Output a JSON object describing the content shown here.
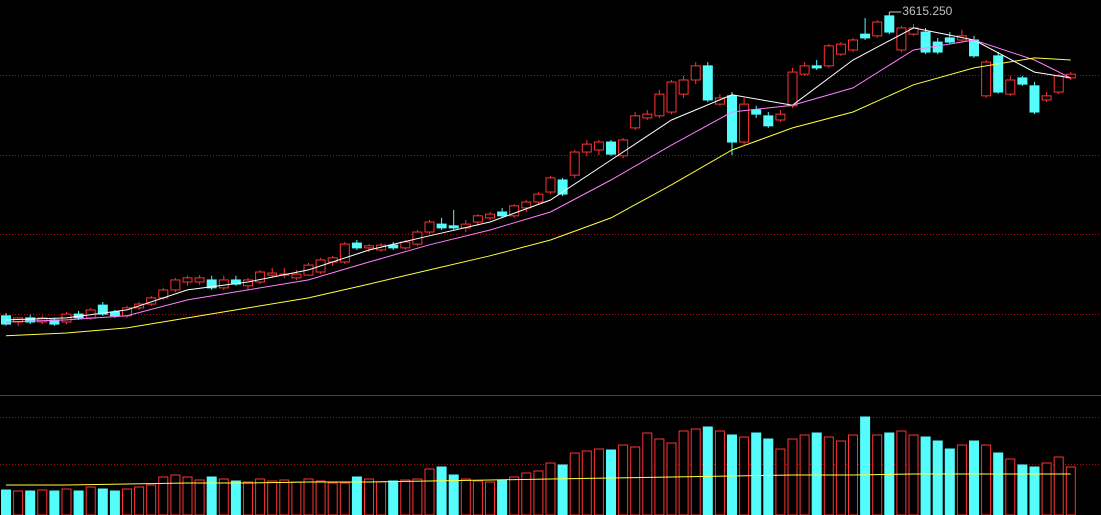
{
  "chart_data": {
    "type": "candlestick",
    "up_color": "#ff3232",
    "down_color": "#54fcfc",
    "grid_color": "#a01010",
    "separator_color": "#b01818",
    "ylim": [
      2600,
      3650
    ],
    "gridlines": [
      3433,
      3201,
      2971,
      2739
    ],
    "open": [
      2734,
      2716,
      2728,
      2716,
      2722,
      2716,
      2739,
      2728,
      2765,
      2745,
      2734,
      2757,
      2768,
      2786,
      2809,
      2832,
      2832,
      2838,
      2815,
      2838,
      2821,
      2832,
      2852,
      2852,
      2844,
      2852,
      2861,
      2890,
      2890,
      2945,
      2931,
      2925,
      2939,
      2931,
      2942,
      2977,
      3000,
      2995,
      2989,
      3006,
      3018,
      3035,
      3024,
      3047,
      3064,
      3093,
      3128,
      3142,
      3209,
      3215,
      3238,
      3198,
      3279,
      3308,
      3314,
      3325,
      3377,
      3418,
      3459,
      3348,
      3372,
      3238,
      3331,
      3314,
      3302,
      3343,
      3435,
      3459,
      3459,
      3493,
      3505,
      3551,
      3546,
      3604,
      3505,
      3551,
      3557,
      3528,
      3540,
      3534,
      3534,
      3372,
      3488,
      3377,
      3424,
      3401,
      3360,
      3383,
      3424
    ],
    "high": [
      2742,
      2728,
      2737,
      2734,
      2728,
      2745,
      2748,
      2757,
      2774,
      2751,
      2763,
      2774,
      2792,
      2815,
      2844,
      2850,
      2852,
      2850,
      2850,
      2850,
      2844,
      2867,
      2873,
      2873,
      2867,
      2887,
      2902,
      2908,
      2948,
      2954,
      2942,
      2945,
      2948,
      2954,
      2983,
      3012,
      3018,
      3041,
      3012,
      3029,
      3035,
      3047,
      3058,
      3070,
      3093,
      3140,
      3134,
      3215,
      3244,
      3244,
      3244,
      3250,
      3325,
      3331,
      3389,
      3418,
      3430,
      3470,
      3470,
      3377,
      3383,
      3366,
      3343,
      3325,
      3331,
      3453,
      3470,
      3476,
      3522,
      3528,
      3540,
      3598,
      3592,
      3615.25,
      3575,
      3580,
      3569,
      3540,
      3557,
      3563,
      3546,
      3476,
      3499,
      3430,
      3430,
      3412,
      3383,
      3435,
      3441
    ],
    "low": [
      2705,
      2705,
      2710,
      2710,
      2705,
      2710,
      2722,
      2722,
      2734,
      2728,
      2728,
      2751,
      2763,
      2780,
      2803,
      2821,
      2824,
      2809,
      2809,
      2821,
      2809,
      2826,
      2844,
      2844,
      2838,
      2850,
      2855,
      2879,
      2884,
      2925,
      2919,
      2919,
      2925,
      2925,
      2936,
      2971,
      2983,
      2983,
      2977,
      2995,
      3012,
      3018,
      3018,
      3035,
      3058,
      3087,
      3081,
      3134,
      3198,
      3200,
      3198,
      3192,
      3273,
      3302,
      3308,
      3319,
      3366,
      3406,
      3354,
      3343,
      3200,
      3230,
      3308,
      3279,
      3296,
      3337,
      3430,
      3447,
      3453,
      3488,
      3499,
      3534,
      3540,
      3551,
      3499,
      3546,
      3493,
      3493,
      3522,
      3528,
      3482,
      3366,
      3378,
      3372,
      3401,
      3319,
      3354,
      3377,
      3418
    ],
    "close": [
      2710,
      2728,
      2716,
      2728,
      2710,
      2739,
      2728,
      2751,
      2739,
      2734,
      2757,
      2768,
      2786,
      2809,
      2838,
      2844,
      2844,
      2815,
      2838,
      2826,
      2838,
      2861,
      2858,
      2855,
      2855,
      2881,
      2896,
      2902,
      2942,
      2931,
      2937,
      2939,
      2931,
      2948,
      2977,
      3006,
      2989,
      2989,
      3000,
      3024,
      3029,
      3024,
      3053,
      3064,
      3087,
      3134,
      3087,
      3209,
      3232,
      3238,
      3203,
      3244,
      3314,
      3319,
      3377,
      3412,
      3418,
      3459,
      3360,
      3366,
      3238,
      3348,
      3319,
      3285,
      3319,
      3441,
      3459,
      3453,
      3517,
      3522,
      3534,
      3540,
      3586,
      3557,
      3569,
      3569,
      3499,
      3499,
      3528,
      3546,
      3488,
      3470,
      3383,
      3418,
      3406,
      3325,
      3372,
      3430,
      3435
    ],
    "max_label": "3615.250",
    "lines": [
      {
        "color": "#ffffff",
        "x": [
          0,
          5,
          10,
          15,
          20,
          25,
          30,
          35,
          40,
          45,
          50,
          55,
          60,
          65,
          70,
          75,
          80,
          85,
          88
        ],
        "values": [
          2722,
          2728,
          2751,
          2809,
          2832,
          2867,
          2925,
          2966,
          3006,
          3070,
          3186,
          3302,
          3375,
          3345,
          3476,
          3569,
          3534,
          3441,
          3424
        ]
      },
      {
        "color": "#ff80ff",
        "x": [
          0,
          5,
          10,
          15,
          20,
          25,
          30,
          35,
          40,
          45,
          50,
          55,
          60,
          65,
          70,
          75,
          80,
          85,
          88
        ],
        "values": [
          2716,
          2722,
          2734,
          2780,
          2809,
          2838,
          2890,
          2940,
          2983,
          3035,
          3128,
          3229,
          3325,
          3345,
          3395,
          3505,
          3534,
          3476,
          3424
        ]
      },
      {
        "color": "#ffff40",
        "x": [
          0,
          5,
          10,
          15,
          20,
          25,
          30,
          35,
          40,
          45,
          50,
          55,
          60,
          65,
          70,
          75,
          80,
          85,
          88
        ],
        "values": [
          2676,
          2684,
          2699,
          2728,
          2757,
          2786,
          2826,
          2867,
          2908,
          2954,
          3018,
          3114,
          3215,
          3279,
          3325,
          3404,
          3453,
          3482,
          3476
        ]
      }
    ],
    "volume": {
      "vlim": [
        0,
        120
      ],
      "gridlines": [
        98,
        51
      ],
      "values": [
        25,
        24,
        24,
        25,
        24,
        26,
        24,
        28,
        26,
        24,
        26,
        28,
        30,
        38,
        40,
        38,
        35,
        38,
        36,
        34,
        33,
        36,
        34,
        35,
        33,
        36,
        34,
        32,
        32,
        38,
        36,
        33,
        34,
        35,
        36,
        46,
        48,
        40,
        36,
        34,
        33,
        35,
        38,
        42,
        44,
        52,
        50,
        62,
        64,
        66,
        65,
        70,
        68,
        82,
        76,
        72,
        84,
        86,
        88,
        84,
        80,
        78,
        82,
        76,
        66,
        76,
        80,
        82,
        78,
        74,
        80,
        98,
        80,
        82,
        84,
        80,
        78,
        74,
        66,
        70,
        74,
        70,
        62,
        56,
        50,
        48,
        52,
        58,
        48
      ],
      "line": {
        "color": "#ffff40",
        "x": [
          0,
          5,
          10,
          15,
          20,
          25,
          30,
          35,
          40,
          45,
          50,
          55,
          60,
          65,
          70,
          75,
          80,
          85,
          88
        ],
        "values": [
          30,
          30,
          31,
          32,
          32,
          33,
          33,
          34,
          35,
          36,
          37,
          38,
          39,
          40,
          40,
          41,
          41,
          41,
          41
        ]
      }
    }
  }
}
